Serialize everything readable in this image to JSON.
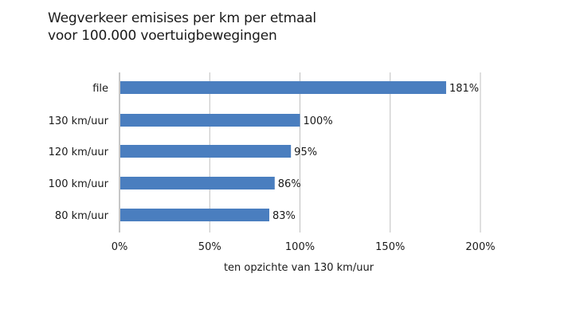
{
  "chart_data": {
    "type": "bar",
    "orientation": "horizontal",
    "title_lines": [
      "Wegverkeer emisises per km per etmaal",
      "voor 100.000 voertuigbewegingen"
    ],
    "categories": [
      "file",
      "130 km/uur",
      "120 km/uur",
      "100 km/uur",
      "80 km/uur"
    ],
    "values": [
      181,
      100,
      95,
      86,
      83
    ],
    "value_labels": [
      "181%",
      "100%",
      "95%",
      "86%",
      "83%"
    ],
    "xlabel": "ten opzichte van 130 km/uur",
    "ylabel": "",
    "xlim": [
      0,
      200
    ],
    "x_ticks": [
      0,
      50,
      100,
      150,
      200
    ],
    "x_tick_labels": [
      "0%",
      "50%",
      "100%",
      "150%",
      "200%"
    ],
    "grid": "vertical",
    "bar_color": "#4a7ebf",
    "grid_color": "#bfbfbf"
  }
}
